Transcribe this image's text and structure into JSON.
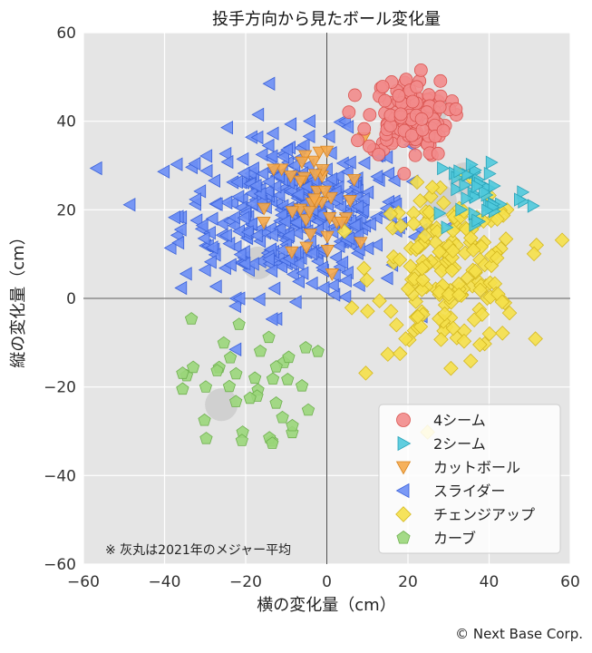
{
  "chart_data": {
    "type": "scatter",
    "title": "投手方向から見たボール変化量",
    "xlabel": "横の変化量（cm）",
    "ylabel": "縦の変化量（cm）",
    "xlim": [
      -60,
      60
    ],
    "ylim": [
      -60,
      60
    ],
    "x_ticks": [
      "−60",
      "−40",
      "−20",
      "0",
      "20",
      "40",
      "60"
    ],
    "y_ticks": [
      "60",
      "40",
      "20",
      "0",
      "−20",
      "−40",
      "−60"
    ],
    "grid": true,
    "legend_position": "bottom-right",
    "note": "※ 灰丸は2021年のメジャー平均",
    "series": [
      {
        "name": "4シーム",
        "marker": "circle",
        "color": "#f28b8b",
        "stroke": "#d9534f",
        "center": [
          20,
          41
        ],
        "spread": [
          5,
          4.5
        ],
        "count": 130
      },
      {
        "name": "2シーム",
        "marker": "triangle-right",
        "color": "#4fc9dc",
        "stroke": "#2aa3b8",
        "center": [
          38,
          24
        ],
        "spread": [
          6,
          5
        ],
        "count": 45
      },
      {
        "name": "カットボール",
        "marker": "triangle-down",
        "color": "#f5a84a",
        "stroke": "#d98520",
        "center": [
          -3,
          20
        ],
        "spread": [
          6,
          8
        ],
        "count": 40
      },
      {
        "name": "スライダー",
        "marker": "triangle-left",
        "color": "#6b8ef5",
        "stroke": "#3b62d9",
        "center": [
          -8,
          19
        ],
        "spread": [
          14,
          9
        ],
        "count": 380
      },
      {
        "name": "チェンジアップ",
        "marker": "diamond",
        "color": "#f5e04a",
        "stroke": "#d4b820",
        "center": [
          30,
          6
        ],
        "spread": [
          9,
          9
        ],
        "count": 190
      },
      {
        "name": "カーブ",
        "marker": "pentagon",
        "color": "#9ad67a",
        "stroke": "#6fb04f",
        "center": [
          -20,
          -20
        ],
        "spread": [
          8,
          8
        ],
        "count": 40
      }
    ],
    "league_average_markers": [
      {
        "x": 26,
        "y": 43
      },
      {
        "x": 34,
        "y": 27
      },
      {
        "x": 28,
        "y": 22
      },
      {
        "x": -2,
        "y": 23
      },
      {
        "x": -17,
        "y": 8
      },
      {
        "x": -26,
        "y": -24
      }
    ],
    "league_average_color": "#c8c8c8"
  },
  "credit": "© Next Base Corp."
}
